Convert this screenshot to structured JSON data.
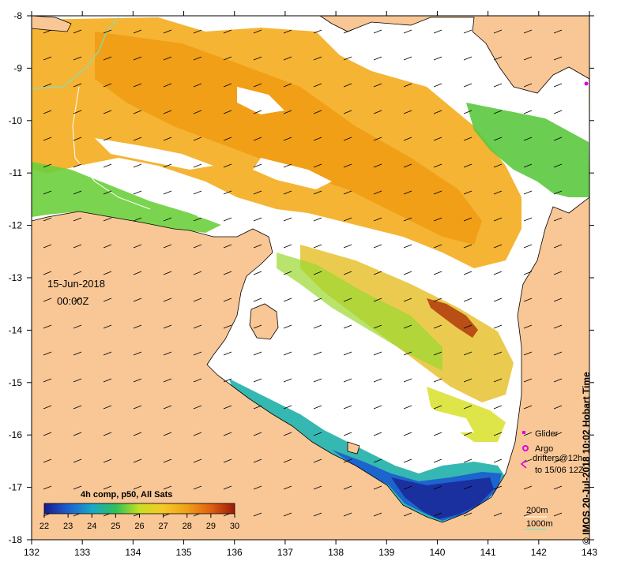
{
  "map": {
    "date_label": "15-Jun-2018",
    "time_label": "00:00Z",
    "credit": "© IMOS 20-Jul-2018 10:02 Hobart Time",
    "x_ticks": [
      "132",
      "133",
      "134",
      "135",
      "136",
      "137",
      "138",
      "139",
      "140",
      "141",
      "142",
      "143"
    ],
    "y_ticks": [
      "-8",
      "-9",
      "-10",
      "-11",
      "-12",
      "-13",
      "-14",
      "-15",
      "-16",
      "-17",
      "-18"
    ],
    "colors": {
      "land": "#F9C796",
      "no_data": "#FFFFFF",
      "glider": "#E000E0",
      "contour_1000m": "#7FE0C0"
    }
  },
  "colorbar": {
    "title": "4h comp, p50, All Sats",
    "labels": [
      "22",
      "23",
      "24",
      "25",
      "26",
      "27",
      "28",
      "29",
      "30"
    ]
  },
  "legend": {
    "glider": "Glider",
    "argo": "Argo",
    "drifters_line1": "drifters@12h",
    "drifters_line2": "to 15/06 12Z",
    "contour_200m": "200m",
    "contour_1000m": "1000m"
  }
}
